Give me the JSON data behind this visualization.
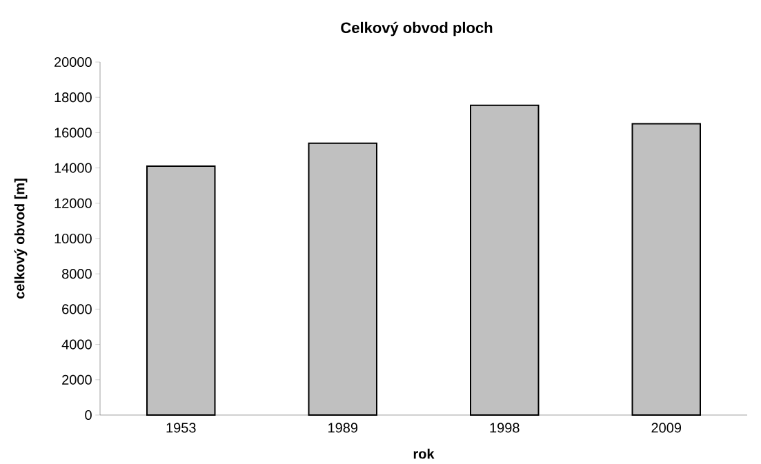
{
  "chart_data": {
    "type": "bar",
    "title": "Celkový obvod ploch",
    "xlabel": "rok",
    "ylabel": "celkový obvod [m]",
    "categories": [
      "1953",
      "1989",
      "1998",
      "2009"
    ],
    "values": [
      14100,
      15400,
      17550,
      16500
    ],
    "color": "#c0c0c0",
    "ylim": [
      0,
      20000
    ],
    "yticks": [
      0,
      2000,
      4000,
      6000,
      8000,
      10000,
      12000,
      14000,
      16000,
      18000,
      20000
    ]
  }
}
